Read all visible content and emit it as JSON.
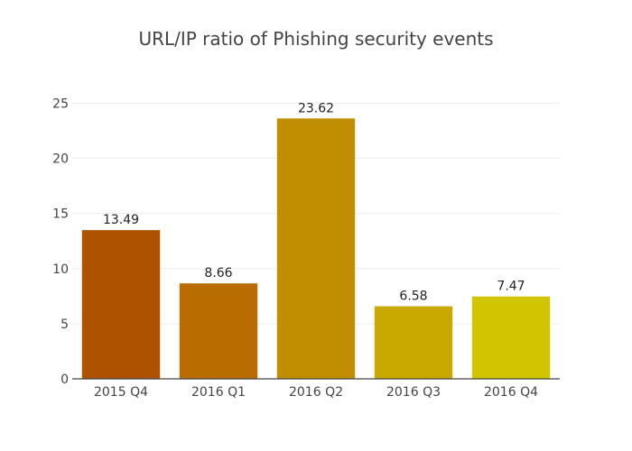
{
  "chart_data": {
    "type": "bar",
    "title": "URL/IP ratio of Phishing security events",
    "xlabel": "",
    "ylabel": "",
    "categories": [
      "2015 Q4",
      "2016 Q1",
      "2016 Q2",
      "2016 Q3",
      "2016 Q4"
    ],
    "values": [
      13.49,
      8.66,
      23.62,
      6.58,
      7.47
    ],
    "data_labels": [
      "13.49",
      "8.66",
      "23.62",
      "6.58",
      "7.47"
    ],
    "colors": [
      "#ae5200",
      "#b96d00",
      "#c08e00",
      "#c9a800",
      "#d1c400"
    ],
    "ylim": [
      0,
      27
    ],
    "yticks": [
      0,
      5,
      10,
      15,
      20,
      25
    ],
    "grid": true,
    "legend": false
  }
}
